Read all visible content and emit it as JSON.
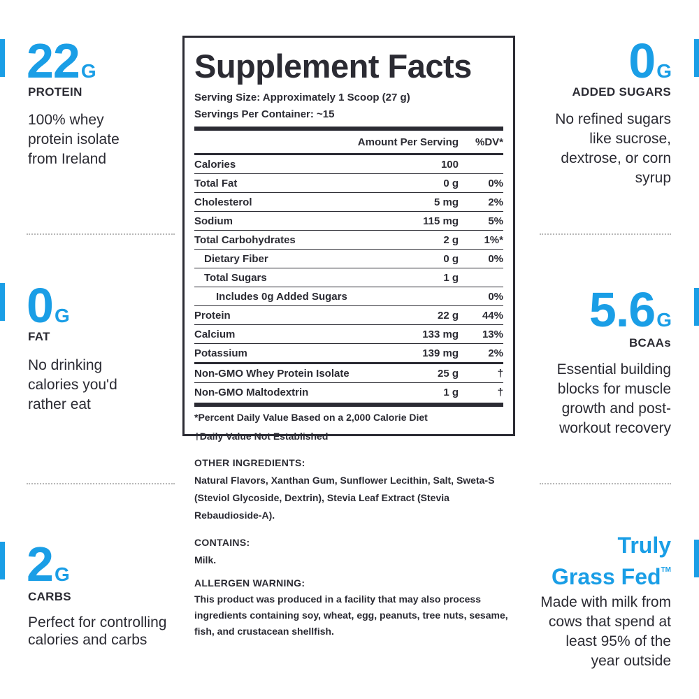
{
  "left": [
    {
      "value": "22",
      "unit": "G",
      "caption": "PROTEIN",
      "desc": "100% whey protein isolate from Ireland"
    },
    {
      "value": "0",
      "unit": "G",
      "caption": "FAT",
      "desc": "No drinking calories you'd rather eat"
    },
    {
      "value": "2",
      "unit": "G",
      "caption": "CARBS",
      "desc": "Perfect for controlling calories and carbs"
    }
  ],
  "right": [
    {
      "value": "0",
      "unit": "G",
      "caption": "ADDED SUGARS",
      "desc": "No refined sugars like sucrose, dextrose, or corn syrup"
    },
    {
      "value": "5.6",
      "unit": "G",
      "caption": "BCAAs",
      "desc": "Essential building blocks for muscle growth and post-workout recovery"
    }
  ],
  "grassfed": {
    "line1": "Truly",
    "line2": "Grass Fed",
    "tm": "TM",
    "desc": "Made with milk from cows that spend at least 95% of the year outside"
  },
  "facts": {
    "title": "Supplement Facts",
    "serving_size": "Serving Size: Approximately 1 Scoop (27 g)",
    "servings": "Servings Per Container: ~15",
    "col_amount": "Amount Per Serving",
    "col_dv": "%DV*",
    "rows": [
      {
        "name": "Calories",
        "value": "100",
        "dv": ""
      },
      {
        "name": "Total Fat",
        "value": "0 g",
        "dv": "0%"
      },
      {
        "name": "Cholesterol",
        "value": "5 mg",
        "dv": "2%"
      },
      {
        "name": "Sodium",
        "value": "115 mg",
        "dv": "5%"
      },
      {
        "name": "Total Carbohydrates",
        "value": "2 g",
        "dv": "1%*"
      },
      {
        "name": "Dietary Fiber",
        "value": "0 g",
        "dv": "0%"
      },
      {
        "name": "Total Sugars",
        "value": "1 g",
        "dv": ""
      },
      {
        "name": "Includes 0g Added Sugars",
        "value": "",
        "dv": "0%"
      },
      {
        "name": "Protein",
        "value": "22 g",
        "dv": "44%"
      },
      {
        "name": "Calcium",
        "value": "133 mg",
        "dv": "13%"
      },
      {
        "name": "Potassium",
        "value": "139 mg",
        "dv": "2%"
      },
      {
        "name": "Non-GMO Whey Protein Isolate",
        "value": "25 g",
        "dv": "†"
      },
      {
        "name": "Non-GMO Maltodextrin",
        "value": "1 g",
        "dv": "†"
      }
    ],
    "foot1": "*Percent Daily Value Based on a 2,000 Calorie Diet",
    "foot2": "†Daily Value Not Established"
  },
  "ingredients": {
    "other_head": "OTHER INGREDIENTS:",
    "other_text": "Natural Flavors, Xanthan Gum, Sunflower Lecithin, Salt, Sweta-S (Steviol Glycoside, Dextrin), Stevia Leaf Extract (Stevia Rebaudioside-A).",
    "contains_head": "CONTAINS:",
    "contains_text": "Milk.",
    "allergen_head": "ALLERGEN WARNING:",
    "allergen_text": "This product was produced in a facility that may also process ingredients containing soy, wheat, egg, peanuts, tree nuts, sesame, fish, and crustacean shellfish."
  },
  "accent_color": "#1a9ee6"
}
